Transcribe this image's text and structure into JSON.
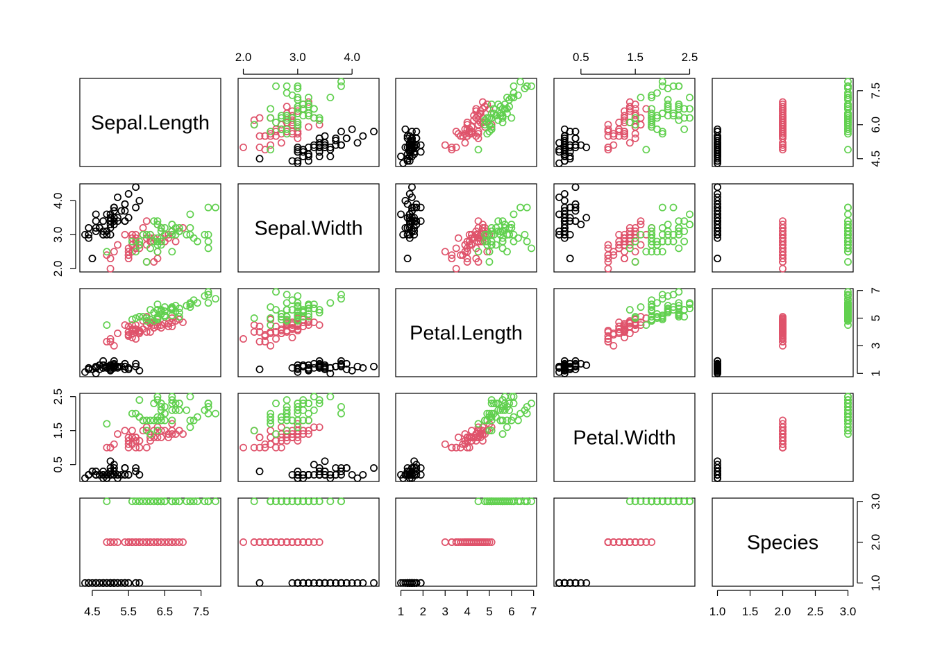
{
  "chart_data": {
    "type": "scatter",
    "title": "",
    "variables": [
      "Sepal.Length",
      "Sepal.Width",
      "Petal.Length",
      "Petal.Width",
      "Species"
    ],
    "colors": [
      "#000000",
      "#DF536B",
      "#61D04F"
    ],
    "point_shape": "open circle",
    "grid": false,
    "ranges": {
      "Sepal.Length": [
        4.3,
        7.9
      ],
      "Sepal.Width": [
        2.0,
        4.4
      ],
      "Petal.Length": [
        1.0,
        6.9
      ],
      "Petal.Width": [
        0.1,
        2.5
      ],
      "Species": [
        1,
        3
      ]
    },
    "ticks": {
      "Sepal.Length": [
        "4.5",
        "5.5",
        "6.5",
        "7.5"
      ],
      "Sepal.Length_right": [
        "4.5",
        "6.0",
        "7.5"
      ],
      "Sepal.Width": [
        "2.0",
        "3.0",
        "4.0"
      ],
      "Petal.Length": [
        "1",
        "2",
        "3",
        "4",
        "5",
        "6",
        "7"
      ],
      "Petal.Length_right": [
        "1",
        "3",
        "5",
        "7"
      ],
      "Petal.Width": [
        "0.5",
        "1.5",
        "2.5"
      ],
      "Species": [
        "1.0",
        "1.5",
        "2.0",
        "2.5",
        "3.0"
      ],
      "Species_right": [
        "1.0",
        "2.0",
        "3.0"
      ]
    },
    "axis_sides": {
      "Sepal.Length": "bottom",
      "Sepal.Width": "top",
      "Petal.Length": "bottom",
      "Petal.Width": "top",
      "Species": "bottom"
    },
    "species_codes": [
      1,
      1,
      1,
      1,
      1,
      1,
      1,
      1,
      1,
      1,
      1,
      1,
      1,
      1,
      1,
      1,
      1,
      1,
      1,
      1,
      1,
      1,
      1,
      1,
      1,
      1,
      1,
      1,
      1,
      1,
      1,
      1,
      1,
      1,
      1,
      1,
      1,
      1,
      1,
      1,
      1,
      1,
      1,
      1,
      1,
      1,
      1,
      1,
      1,
      1,
      2,
      2,
      2,
      2,
      2,
      2,
      2,
      2,
      2,
      2,
      2,
      2,
      2,
      2,
      2,
      2,
      2,
      2,
      2,
      2,
      2,
      2,
      2,
      2,
      2,
      2,
      2,
      2,
      2,
      2,
      2,
      2,
      2,
      2,
      2,
      2,
      2,
      2,
      2,
      2,
      2,
      2,
      2,
      2,
      2,
      2,
      2,
      2,
      2,
      2,
      3,
      3,
      3,
      3,
      3,
      3,
      3,
      3,
      3,
      3,
      3,
      3,
      3,
      3,
      3,
      3,
      3,
      3,
      3,
      3,
      3,
      3,
      3,
      3,
      3,
      3,
      3,
      3,
      3,
      3,
      3,
      3,
      3,
      3,
      3,
      3,
      3,
      3,
      3,
      3,
      3,
      3,
      3,
      3,
      3,
      3,
      3,
      3,
      3,
      3
    ],
    "series": [
      {
        "values": {
          "Sepal.Length": [
            5.1,
            4.9,
            4.7,
            4.6,
            5.0,
            5.4,
            4.6,
            5.0,
            4.4,
            4.9,
            5.4,
            4.8,
            4.8,
            4.3,
            5.8,
            5.7,
            5.4,
            5.1,
            5.7,
            5.1,
            5.4,
            5.1,
            4.6,
            5.1,
            4.8,
            5.0,
            5.0,
            5.2,
            5.2,
            4.7,
            4.8,
            5.4,
            5.2,
            5.5,
            4.9,
            5.0,
            5.5,
            4.9,
            4.4,
            5.1,
            5.0,
            4.5,
            4.4,
            5.0,
            5.1,
            4.8,
            5.1,
            4.6,
            5.3,
            5.0
          ],
          "Sepal.Width": [
            3.5,
            3.0,
            3.2,
            3.1,
            3.6,
            3.9,
            3.4,
            3.4,
            2.9,
            3.1,
            3.7,
            3.4,
            3.0,
            3.0,
            4.0,
            4.4,
            3.9,
            3.5,
            3.8,
            3.8,
            3.4,
            3.7,
            3.6,
            3.3,
            3.4,
            3.0,
            3.4,
            3.5,
            3.4,
            3.2,
            3.1,
            3.4,
            4.1,
            4.2,
            3.1,
            3.2,
            3.5,
            3.6,
            3.0,
            3.4,
            3.5,
            2.3,
            3.2,
            3.5,
            3.8,
            3.0,
            3.8,
            3.2,
            3.7,
            3.3
          ],
          "Petal.Length": [
            1.4,
            1.4,
            1.3,
            1.5,
            1.4,
            1.7,
            1.4,
            1.5,
            1.4,
            1.5,
            1.5,
            1.6,
            1.4,
            1.1,
            1.2,
            1.5,
            1.3,
            1.4,
            1.7,
            1.5,
            1.7,
            1.5,
            1.0,
            1.7,
            1.9,
            1.6,
            1.6,
            1.5,
            1.4,
            1.6,
            1.6,
            1.5,
            1.5,
            1.4,
            1.5,
            1.2,
            1.3,
            1.4,
            1.3,
            1.5,
            1.3,
            1.3,
            1.3,
            1.6,
            1.9,
            1.4,
            1.6,
            1.4,
            1.5,
            1.4
          ],
          "Petal.Width": [
            0.2,
            0.2,
            0.2,
            0.2,
            0.2,
            0.4,
            0.3,
            0.2,
            0.2,
            0.1,
            0.2,
            0.2,
            0.1,
            0.1,
            0.2,
            0.4,
            0.4,
            0.3,
            0.3,
            0.3,
            0.2,
            0.4,
            0.2,
            0.5,
            0.2,
            0.2,
            0.4,
            0.2,
            0.2,
            0.2,
            0.2,
            0.4,
            0.1,
            0.2,
            0.2,
            0.2,
            0.2,
            0.1,
            0.2,
            0.2,
            0.3,
            0.3,
            0.2,
            0.6,
            0.4,
            0.3,
            0.2,
            0.2,
            0.2,
            0.2
          ]
        }
      },
      {
        "values": {
          "Sepal.Length": [
            7.0,
            6.4,
            6.9,
            5.5,
            6.5,
            5.7,
            6.3,
            4.9,
            6.6,
            5.2,
            5.0,
            5.9,
            6.0,
            6.1,
            5.6,
            6.7,
            5.6,
            5.8,
            6.2,
            5.6,
            5.9,
            6.1,
            6.3,
            6.1,
            6.4,
            6.6,
            6.8,
            6.7,
            6.0,
            5.7,
            5.5,
            5.5,
            5.8,
            6.0,
            5.4,
            6.0,
            6.7,
            6.3,
            5.6,
            5.5,
            5.5,
            6.1,
            5.8,
            5.0,
            5.6,
            5.7,
            5.7,
            6.2,
            5.1,
            5.7
          ],
          "Sepal.Width": [
            3.2,
            3.2,
            3.1,
            2.3,
            2.8,
            2.8,
            3.3,
            2.4,
            2.9,
            2.7,
            2.0,
            3.0,
            2.2,
            2.9,
            2.9,
            3.1,
            3.0,
            2.7,
            2.2,
            2.5,
            3.2,
            2.8,
            2.5,
            2.8,
            2.9,
            3.0,
            2.8,
            3.0,
            2.9,
            2.6,
            2.4,
            2.4,
            2.7,
            2.7,
            3.0,
            3.4,
            3.1,
            2.3,
            3.0,
            2.5,
            2.6,
            3.0,
            2.6,
            2.3,
            2.7,
            3.0,
            2.9,
            2.9,
            2.5,
            2.8
          ],
          "Petal.Length": [
            4.7,
            4.5,
            4.9,
            4.0,
            4.6,
            4.5,
            4.7,
            3.3,
            4.6,
            3.9,
            3.5,
            4.2,
            4.0,
            4.7,
            3.6,
            4.4,
            4.5,
            4.1,
            4.5,
            3.9,
            4.8,
            4.0,
            4.9,
            4.7,
            4.3,
            4.4,
            4.8,
            5.0,
            4.5,
            3.5,
            3.8,
            3.7,
            3.9,
            5.1,
            4.5,
            4.5,
            4.7,
            4.4,
            4.1,
            4.0,
            4.4,
            4.6,
            4.0,
            3.3,
            4.2,
            4.2,
            4.2,
            4.3,
            3.0,
            4.1
          ],
          "Petal.Width": [
            1.4,
            1.5,
            1.5,
            1.3,
            1.5,
            1.3,
            1.6,
            1.0,
            1.3,
            1.4,
            1.0,
            1.5,
            1.0,
            1.4,
            1.3,
            1.4,
            1.5,
            1.0,
            1.5,
            1.1,
            1.8,
            1.3,
            1.5,
            1.2,
            1.3,
            1.4,
            1.4,
            1.7,
            1.5,
            1.0,
            1.1,
            1.0,
            1.2,
            1.6,
            1.5,
            1.6,
            1.5,
            1.3,
            1.3,
            1.3,
            1.2,
            1.4,
            1.2,
            1.0,
            1.3,
            1.2,
            1.3,
            1.3,
            1.1,
            1.3
          ]
        }
      },
      {
        "values": {
          "Sepal.Length": [
            6.3,
            5.8,
            7.1,
            6.3,
            6.5,
            7.6,
            4.9,
            7.3,
            6.7,
            7.2,
            6.5,
            6.4,
            6.8,
            5.7,
            5.8,
            6.4,
            6.5,
            7.7,
            7.7,
            6.0,
            6.9,
            5.6,
            7.7,
            6.3,
            6.7,
            7.2,
            6.2,
            6.1,
            6.4,
            7.2,
            7.4,
            7.9,
            6.4,
            6.3,
            6.1,
            7.7,
            6.3,
            6.4,
            6.0,
            6.9,
            6.7,
            6.9,
            5.8,
            6.8,
            6.7,
            6.7,
            6.3,
            6.5,
            6.2,
            5.9
          ],
          "Sepal.Width": [
            3.3,
            2.7,
            3.0,
            2.9,
            3.0,
            3.0,
            2.5,
            2.9,
            2.5,
            3.6,
            3.2,
            2.7,
            3.0,
            2.5,
            2.8,
            3.2,
            3.0,
            3.8,
            2.6,
            2.2,
            3.2,
            2.8,
            2.8,
            2.7,
            3.3,
            3.2,
            2.8,
            3.0,
            2.8,
            3.0,
            2.8,
            3.8,
            2.8,
            2.8,
            2.6,
            3.0,
            3.4,
            3.1,
            3.0,
            3.1,
            3.1,
            3.1,
            2.7,
            3.2,
            3.3,
            3.0,
            2.5,
            3.0,
            3.4,
            3.0
          ],
          "Petal.Length": [
            6.0,
            5.1,
            5.9,
            5.6,
            5.8,
            6.6,
            4.5,
            6.3,
            5.8,
            6.1,
            5.1,
            5.3,
            5.5,
            5.0,
            5.1,
            5.3,
            5.5,
            6.7,
            6.9,
            5.0,
            5.7,
            4.9,
            6.7,
            4.9,
            5.7,
            6.0,
            4.8,
            4.9,
            5.6,
            5.8,
            6.1,
            6.4,
            5.6,
            5.1,
            5.6,
            6.1,
            5.6,
            5.5,
            4.8,
            5.4,
            5.6,
            5.1,
            5.1,
            5.9,
            5.7,
            5.2,
            5.0,
            5.2,
            5.4,
            5.1
          ],
          "Petal.Width": [
            2.5,
            1.9,
            2.1,
            1.8,
            2.2,
            2.1,
            1.7,
            1.8,
            1.8,
            2.5,
            2.0,
            1.9,
            2.1,
            2.0,
            2.4,
            2.3,
            1.8,
            2.2,
            2.3,
            1.5,
            2.3,
            2.0,
            2.0,
            1.8,
            2.1,
            1.8,
            1.8,
            1.8,
            2.1,
            1.6,
            1.9,
            2.0,
            2.2,
            1.5,
            1.4,
            2.3,
            2.4,
            1.8,
            1.8,
            2.1,
            2.4,
            2.3,
            1.9,
            2.3,
            2.5,
            2.3,
            1.9,
            2.0,
            2.3,
            1.8
          ]
        }
      }
    ]
  }
}
